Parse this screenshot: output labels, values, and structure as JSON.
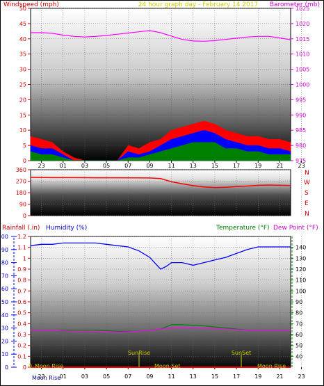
{
  "header": {
    "left_title": "Windspeed (mph)",
    "center_title": "24 hour graph day - February 14 2017",
    "right_title": "Barometer (mb)"
  },
  "bottom_header": {
    "rainfall_label": "Rainfall (.in)",
    "humidity_label": "Humidity (%)",
    "temperature_label": "Temperature (°F)",
    "dewpoint_label": "Dew Point (°F)"
  },
  "compass_letters": [
    "N",
    "W",
    "S",
    "E",
    "N"
  ],
  "annotations": {
    "sunrise": "SunRise",
    "sunset": "SunSet",
    "moon_rise_1": "Moon Rise",
    "moon_set": "Moon Set",
    "moon_rise_2": "Moon Rise",
    "moon_rise_bottom": "Moon Rise",
    "rain_zero_prefix": "0."
  },
  "chart_data": [
    {
      "type": "area",
      "name": "wind",
      "x_tick_labels": [
        "23",
        "01",
        "03",
        "05",
        "07",
        "09",
        "11",
        "13",
        "15",
        "17",
        "19",
        "21",
        "23"
      ],
      "y_left_ticks": [
        0,
        5,
        10,
        15,
        20,
        25,
        30,
        35,
        40,
        45,
        50
      ],
      "y_left_range": [
        0,
        50
      ],
      "y_right_ticks": [
        975,
        980,
        985,
        990,
        995,
        1000,
        1005,
        1010,
        1015,
        1020,
        1025
      ],
      "y_right_range": [
        975,
        1025
      ],
      "series": [
        {
          "name": "Windspeed gust",
          "color": "#ff0000",
          "x_hours": [
            0,
            1,
            2,
            3,
            4,
            5,
            6,
            7,
            8,
            9,
            10,
            11,
            12,
            13,
            14,
            15,
            16,
            17,
            18,
            19,
            20,
            21,
            22,
            23,
            24
          ],
          "values": [
            8,
            7,
            6,
            3,
            1,
            0,
            0,
            0,
            0,
            5,
            4,
            6,
            7,
            10,
            11,
            12,
            13,
            12,
            10,
            9,
            8,
            8,
            7,
            7,
            6
          ]
        },
        {
          "name": "Windspeed average",
          "color": "#0000ff",
          "x_hours": [
            0,
            1,
            2,
            3,
            4,
            5,
            6,
            7,
            8,
            9,
            10,
            11,
            12,
            13,
            14,
            15,
            16,
            17,
            18,
            19,
            20,
            21,
            22,
            23,
            24
          ],
          "values": [
            5,
            4,
            4,
            2,
            0,
            0,
            0,
            0,
            0,
            3,
            2,
            3,
            5,
            7,
            8,
            9,
            10,
            9,
            7,
            6,
            5,
            5,
            4,
            4,
            3
          ]
        },
        {
          "name": "Windspeed low",
          "color": "#008000",
          "x_hours": [
            0,
            1,
            2,
            3,
            4,
            5,
            6,
            7,
            8,
            9,
            10,
            11,
            12,
            13,
            14,
            15,
            16,
            17,
            18,
            19,
            20,
            21,
            22,
            23,
            24
          ],
          "values": [
            3,
            2,
            2,
            1,
            0,
            0,
            0,
            0,
            0,
            1,
            1,
            2,
            3,
            4,
            5,
            6,
            6,
            6,
            4,
            4,
            3,
            3,
            2,
            2,
            2
          ]
        },
        {
          "name": "Barometer",
          "color": "#ff00ff",
          "x_hours": [
            0,
            1,
            2,
            3,
            4,
            5,
            6,
            7,
            8,
            9,
            10,
            11,
            12,
            13,
            14,
            15,
            16,
            17,
            18,
            19,
            20,
            21,
            22,
            23,
            24
          ],
          "values": [
            1017,
            1017,
            1016.8,
            1016.2,
            1015.8,
            1015.6,
            1015.8,
            1016.1,
            1016.5,
            1016.9,
            1017.3,
            1017.7,
            1017,
            1015.9,
            1014.8,
            1014.3,
            1014.2,
            1014.4,
            1014.8,
            1015.2,
            1015.6,
            1015.8,
            1015.8,
            1015.3,
            1014.7
          ]
        }
      ]
    },
    {
      "type": "line",
      "name": "wind direction",
      "y_ticks": [
        0,
        90,
        180,
        270,
        360
      ],
      "y_range": [
        0,
        360
      ],
      "series": [
        {
          "name": "Wind direction",
          "color": "#ff0000",
          "x_hours": [
            0,
            2,
            4,
            6,
            8,
            10,
            11,
            12,
            13,
            14,
            15,
            16,
            17,
            18,
            19,
            20,
            21,
            22,
            23,
            24
          ],
          "values": [
            300,
            298,
            298,
            297,
            297,
            296,
            295,
            290,
            265,
            250,
            235,
            225,
            220,
            222,
            228,
            232,
            238,
            240,
            238,
            236
          ]
        }
      ]
    },
    {
      "type": "line",
      "name": "humidity temperature",
      "x_tick_labels": [
        "23",
        "01",
        "03",
        "05",
        "07",
        "09",
        "11",
        "13",
        "15",
        "17",
        "19",
        "21",
        "23"
      ],
      "y_left_ticks": [
        0,
        10,
        20,
        30,
        40,
        50,
        60,
        70,
        80,
        90,
        100
      ],
      "y_left_range": [
        0,
        100
      ],
      "y_rain_ticks": [
        0,
        0.1,
        0.2,
        0.3,
        0.4,
        0.5,
        0.6,
        0.7,
        0.8,
        0.9,
        1,
        1.1,
        1.2
      ],
      "y_rain_range": [
        0,
        1.2
      ],
      "y_right_ticks": [
        40,
        50,
        60,
        70,
        80,
        90,
        100,
        110,
        120,
        130,
        140
      ],
      "y_right_range": [
        30,
        150
      ],
      "series": [
        {
          "name": "Humidity",
          "color": "#0000ff",
          "x_hours": [
            0,
            1,
            2,
            3,
            4,
            5,
            6,
            7,
            8,
            9,
            10,
            11,
            12,
            12.5,
            13,
            14,
            15,
            16,
            17,
            18,
            19,
            20,
            21,
            22,
            23,
            24
          ],
          "values": [
            93,
            94,
            94,
            95,
            95,
            95,
            95,
            94,
            93,
            92,
            89,
            84,
            75,
            77,
            80,
            80,
            78,
            80,
            82,
            84,
            87,
            90,
            92,
            92,
            92,
            92
          ]
        },
        {
          "name": "Temperature",
          "color": "#008000",
          "x_hours": [
            0,
            2,
            4,
            6,
            8,
            10,
            11,
            12,
            13,
            14,
            16,
            18,
            20,
            22,
            24
          ],
          "values": [
            64,
            64,
            64,
            64,
            63,
            63,
            64,
            65,
            69,
            69,
            68,
            66,
            64,
            64,
            64
          ]
        },
        {
          "name": "Dew Point",
          "color": "#ff00ff",
          "x_hours": [
            0,
            2,
            4,
            6,
            8,
            10,
            11,
            12,
            13,
            14,
            16,
            18,
            20,
            22,
            24
          ],
          "values": [
            64,
            64,
            63,
            63,
            62,
            63,
            64,
            65,
            66,
            66,
            66,
            65,
            64,
            64,
            64
          ]
        },
        {
          "name": "Rainfall",
          "color": "#ff0000",
          "x_hours": [
            0,
            24
          ],
          "values": [
            0,
            0
          ]
        }
      ]
    }
  ]
}
